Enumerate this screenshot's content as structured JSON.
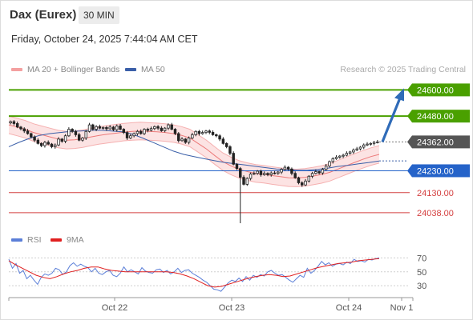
{
  "header": {
    "title": "Dax (Eurex)",
    "interval": "30 MIN",
    "datetime": "Friday, October 24, 2025 7:44:04 AM CET"
  },
  "legend": {
    "ma20": {
      "label": "MA 20 + Bollinger Bands",
      "color": "#f4a0a0"
    },
    "ma50": {
      "label": "MA 50",
      "color": "#3a5fa8"
    }
  },
  "copyright": "Research © 2025 Trading Central",
  "rsi_legend": {
    "rsi": {
      "label": "RSI",
      "color": "#5b7fd8"
    },
    "ma9": {
      "label": "9MA",
      "color": "#e02020"
    }
  },
  "chart_data": [
    {
      "type": "candlestick",
      "title": "",
      "ylim": [
        23990,
        24660
      ],
      "x_ticks": [
        "Oct 22",
        "Oct 23",
        "Oct 24",
        "Nov 1"
      ],
      "levels": [
        {
          "value": "24600.00",
          "kind": "resistance",
          "color": "#4aa000"
        },
        {
          "value": "24480.00",
          "kind": "resistance",
          "color": "#4aa000"
        },
        {
          "value": "24362.00",
          "kind": "last",
          "color": "#555555"
        },
        {
          "value": "24230.00",
          "kind": "pivot",
          "color": "#2563c9"
        },
        {
          "value": "24130.00",
          "kind": "support",
          "color": "#d44040"
        },
        {
          "value": "24038.00",
          "kind": "support",
          "color": "#d44040"
        }
      ],
      "close": [
        24455,
        24446,
        24430,
        24422,
        24412,
        24400,
        24385,
        24370,
        24355,
        24345,
        24360,
        24352,
        24340,
        24348,
        24375,
        24365,
        24390,
        24420,
        24410,
        24395,
        24370,
        24380,
        24410,
        24440,
        24420,
        24432,
        24425,
        24428,
        24422,
        24430,
        24418,
        24435,
        24420,
        24405,
        24380,
        24390,
        24400,
        24410,
        24400,
        24420,
        24415,
        24423,
        24432,
        24425,
        24413,
        24425,
        24440,
        24420,
        24400,
        24368,
        24375,
        24360,
        24380,
        24395,
        24410,
        24400,
        24405,
        24412,
        24406,
        24395,
        24390,
        24375,
        24355,
        24340,
        24310,
        24260,
        24240,
        24200,
        24168,
        24195,
        24215,
        24218,
        24228,
        24212,
        24218,
        24212,
        24220,
        24218,
        24224,
        24236,
        24246,
        24238,
        24218,
        24198,
        24175,
        24165,
        24183,
        24205,
        24218,
        24226,
        24220,
        24236,
        24252,
        24272,
        24285,
        24292,
        24297,
        24301,
        24310,
        24316,
        24325,
        24330,
        24338,
        24348,
        24352,
        24355,
        24360,
        24362
      ],
      "ma20": [
        24440,
        24430,
        24420,
        24405,
        24395,
        24385,
        24375,
        24370,
        24372,
        24377,
        24385,
        24392,
        24397,
        24402,
        24407,
        24410,
        24412,
        24410,
        24408,
        24405,
        24400,
        24392,
        24380,
        24355,
        24330,
        24300,
        24272,
        24252,
        24236,
        24226,
        24218,
        24214,
        24208,
        24203,
        24198,
        24197,
        24200,
        24206,
        24213,
        24223,
        24238,
        24253,
        24268,
        24282,
        24295,
        24305
      ],
      "ma50": [
        24340,
        24360,
        24378,
        24392,
        24400,
        24405,
        24410,
        24412,
        24415,
        24415,
        24412,
        24408,
        24398,
        24380,
        24360,
        24340,
        24320,
        24305,
        24295,
        24285,
        24276,
        24268,
        24262,
        24256,
        24250,
        24244,
        24238,
        24236,
        24232,
        24232,
        24236,
        24242,
        24250,
        24255,
        24262,
        24268,
        24275
      ],
      "forecast": {
        "from": 24362,
        "to": 24600
      }
    },
    {
      "type": "line",
      "title": "RSI",
      "ylim": [
        14,
        82
      ],
      "y_ticks": [
        "70",
        "50",
        "30"
      ],
      "series": [
        {
          "name": "RSI",
          "values": [
            68,
            55,
            62,
            48,
            52,
            40,
            45,
            38,
            32,
            42,
            47,
            45,
            48,
            55,
            53,
            46,
            50,
            59,
            63,
            58,
            61,
            58,
            56,
            50,
            55,
            48,
            46,
            50,
            52,
            45,
            43,
            48,
            57,
            50,
            53,
            50,
            47,
            56,
            51,
            49,
            48,
            53,
            54,
            49,
            52,
            47,
            50,
            55,
            49,
            52,
            53,
            48,
            45,
            42,
            38,
            35,
            30,
            25,
            24,
            22,
            28,
            34,
            38,
            36,
            41,
            36,
            43,
            38,
            45,
            42,
            46,
            44,
            50,
            52,
            48,
            45,
            46,
            42,
            38,
            35,
            40,
            45,
            42,
            55,
            48,
            52,
            58,
            65,
            60,
            63,
            58,
            61,
            62,
            60,
            64,
            62,
            68,
            65,
            66,
            64,
            68,
            67,
            69,
            70
          ]
        },
        {
          "name": "9MA",
          "values": [
            66,
            60,
            55,
            50,
            45,
            42,
            40,
            43,
            47,
            50,
            52,
            55,
            57,
            57,
            54,
            52,
            51,
            50,
            50,
            50,
            50,
            50,
            50,
            50,
            49,
            47,
            44,
            40,
            35,
            30,
            28,
            29,
            32,
            35,
            38,
            41,
            43,
            45,
            46,
            45,
            43,
            44,
            47,
            50,
            53,
            56,
            58,
            60,
            62,
            63,
            64,
            66,
            67,
            68,
            69
          ]
        }
      ]
    }
  ]
}
